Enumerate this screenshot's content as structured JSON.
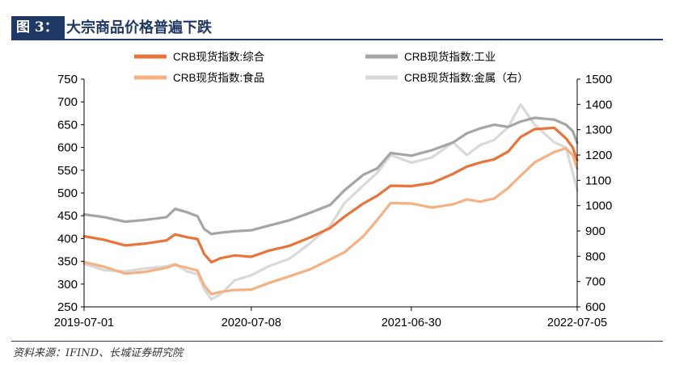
{
  "header": {
    "figure_label": "图 3：",
    "title": "大宗商品价格普遍下跌"
  },
  "source": "资料来源：IFIND、长城证券研究院",
  "colors": {
    "header_bg": "#1f3864",
    "axis": "#000000"
  },
  "chart_data": {
    "type": "line",
    "x_ticks": [
      "2019-07-01",
      "2020-07-08",
      "2021-06-30",
      "2022-07-05"
    ],
    "x_range": [
      "2019-07-01",
      "2022-07-05"
    ],
    "y_left": {
      "min": 250,
      "max": 750,
      "ticks": [
        250,
        300,
        350,
        400,
        450,
        500,
        550,
        600,
        650,
        700,
        750
      ]
    },
    "y_right": {
      "min": 600,
      "max": 1500,
      "ticks": [
        600,
        700,
        800,
        900,
        1000,
        1100,
        1200,
        1300,
        1400,
        1500
      ]
    },
    "grid": false,
    "legend_position": "top",
    "series": [
      {
        "name": "CRB现货指数:综合",
        "axis": "left",
        "color": "#e8743b",
        "width": 3.2,
        "points": [
          [
            "2019-07-01",
            405
          ],
          [
            "2019-08-15",
            397
          ],
          [
            "2019-10-01",
            385
          ],
          [
            "2019-11-15",
            389
          ],
          [
            "2020-01-01",
            396
          ],
          [
            "2020-01-20",
            409
          ],
          [
            "2020-02-15",
            403
          ],
          [
            "2020-03-10",
            399
          ],
          [
            "2020-03-25",
            366
          ],
          [
            "2020-04-10",
            348
          ],
          [
            "2020-05-01",
            357
          ],
          [
            "2020-06-01",
            363
          ],
          [
            "2020-07-08",
            360
          ],
          [
            "2020-08-15",
            373
          ],
          [
            "2020-10-01",
            384
          ],
          [
            "2020-11-15",
            402
          ],
          [
            "2020-12-31",
            423
          ],
          [
            "2021-02-01",
            448
          ],
          [
            "2021-03-15",
            477
          ],
          [
            "2021-04-15",
            494
          ],
          [
            "2021-05-15",
            516
          ],
          [
            "2021-06-30",
            515
          ],
          [
            "2021-08-15",
            522
          ],
          [
            "2021-10-01",
            542
          ],
          [
            "2021-11-01",
            558
          ],
          [
            "2021-12-01",
            567
          ],
          [
            "2022-01-01",
            574
          ],
          [
            "2022-02-01",
            591
          ],
          [
            "2022-03-01",
            623
          ],
          [
            "2022-04-01",
            640
          ],
          [
            "2022-05-15",
            643
          ],
          [
            "2022-06-10",
            620
          ],
          [
            "2022-06-25",
            600
          ],
          [
            "2022-07-05",
            572
          ]
        ]
      },
      {
        "name": "CRB现货指数:工业",
        "axis": "left",
        "color": "#a5a5a5",
        "width": 3.2,
        "points": [
          [
            "2019-07-01",
            453
          ],
          [
            "2019-08-15",
            447
          ],
          [
            "2019-10-01",
            437
          ],
          [
            "2019-11-15",
            441
          ],
          [
            "2020-01-01",
            447
          ],
          [
            "2020-01-20",
            465
          ],
          [
            "2020-02-15",
            458
          ],
          [
            "2020-03-10",
            449
          ],
          [
            "2020-03-25",
            421
          ],
          [
            "2020-04-10",
            410
          ],
          [
            "2020-05-01",
            413
          ],
          [
            "2020-06-01",
            416
          ],
          [
            "2020-07-08",
            418
          ],
          [
            "2020-08-15",
            428
          ],
          [
            "2020-10-01",
            440
          ],
          [
            "2020-11-15",
            456
          ],
          [
            "2020-12-31",
            474
          ],
          [
            "2021-02-01",
            506
          ],
          [
            "2021-03-15",
            540
          ],
          [
            "2021-04-15",
            554
          ],
          [
            "2021-05-15",
            588
          ],
          [
            "2021-06-30",
            582
          ],
          [
            "2021-08-15",
            594
          ],
          [
            "2021-10-01",
            611
          ],
          [
            "2021-11-01",
            631
          ],
          [
            "2021-12-01",
            642
          ],
          [
            "2022-01-01",
            650
          ],
          [
            "2022-02-01",
            645
          ],
          [
            "2022-03-01",
            657
          ],
          [
            "2022-04-01",
            665
          ],
          [
            "2022-05-15",
            661
          ],
          [
            "2022-06-10",
            650
          ],
          [
            "2022-06-25",
            636
          ],
          [
            "2022-07-05",
            610
          ]
        ]
      },
      {
        "name": "CRB现货指数:食品",
        "axis": "left",
        "color": "#f4b183",
        "width": 3.2,
        "points": [
          [
            "2019-07-01",
            348
          ],
          [
            "2019-08-15",
            338
          ],
          [
            "2019-10-01",
            323
          ],
          [
            "2019-11-15",
            327
          ],
          [
            "2020-01-01",
            336
          ],
          [
            "2020-01-20",
            342
          ],
          [
            "2020-02-15",
            336
          ],
          [
            "2020-03-10",
            330
          ],
          [
            "2020-03-25",
            297
          ],
          [
            "2020-04-10",
            278
          ],
          [
            "2020-05-01",
            283
          ],
          [
            "2020-06-01",
            287
          ],
          [
            "2020-07-08",
            288
          ],
          [
            "2020-08-15",
            302
          ],
          [
            "2020-10-01",
            317
          ],
          [
            "2020-11-15",
            332
          ],
          [
            "2020-12-31",
            354
          ],
          [
            "2021-02-01",
            370
          ],
          [
            "2021-03-15",
            405
          ],
          [
            "2021-04-15",
            441
          ],
          [
            "2021-05-15",
            478
          ],
          [
            "2021-06-30",
            477
          ],
          [
            "2021-08-15",
            468
          ],
          [
            "2021-10-01",
            475
          ],
          [
            "2021-11-01",
            486
          ],
          [
            "2021-12-01",
            481
          ],
          [
            "2022-01-01",
            488
          ],
          [
            "2022-02-01",
            511
          ],
          [
            "2022-03-01",
            538
          ],
          [
            "2022-04-01",
            567
          ],
          [
            "2022-05-15",
            590
          ],
          [
            "2022-06-10",
            598
          ],
          [
            "2022-06-25",
            583
          ],
          [
            "2022-07-05",
            553
          ]
        ]
      },
      {
        "name": "CRB现货指数:金属（右）",
        "axis": "right",
        "color": "#d9d9d9",
        "width": 3.2,
        "points": [
          [
            "2019-07-01",
            770
          ],
          [
            "2019-08-15",
            745
          ],
          [
            "2019-10-01",
            740
          ],
          [
            "2019-11-15",
            752
          ],
          [
            "2020-01-01",
            760
          ],
          [
            "2020-01-20",
            770
          ],
          [
            "2020-02-15",
            740
          ],
          [
            "2020-03-10",
            730
          ],
          [
            "2020-03-25",
            670
          ],
          [
            "2020-04-10",
            630
          ],
          [
            "2020-05-01",
            650
          ],
          [
            "2020-06-01",
            705
          ],
          [
            "2020-07-08",
            725
          ],
          [
            "2020-08-15",
            760
          ],
          [
            "2020-10-01",
            790
          ],
          [
            "2020-11-15",
            850
          ],
          [
            "2020-12-31",
            920
          ],
          [
            "2021-02-01",
            1010
          ],
          [
            "2021-03-15",
            1080
          ],
          [
            "2021-04-15",
            1130
          ],
          [
            "2021-05-15",
            1200
          ],
          [
            "2021-06-30",
            1170
          ],
          [
            "2021-08-15",
            1190
          ],
          [
            "2021-10-01",
            1250
          ],
          [
            "2021-11-01",
            1200
          ],
          [
            "2021-12-01",
            1240
          ],
          [
            "2022-01-01",
            1260
          ],
          [
            "2022-02-01",
            1310
          ],
          [
            "2022-03-01",
            1400
          ],
          [
            "2022-04-01",
            1320
          ],
          [
            "2022-05-15",
            1250
          ],
          [
            "2022-06-10",
            1230
          ],
          [
            "2022-06-25",
            1130
          ],
          [
            "2022-07-05",
            1060
          ]
        ]
      }
    ]
  }
}
